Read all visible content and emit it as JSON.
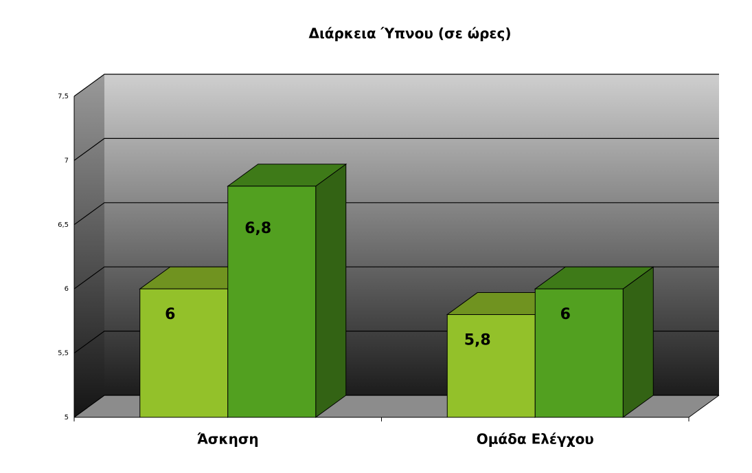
{
  "chart_data": {
    "type": "bar3d",
    "title": "Διάρκεια Ύπνου (σε ώρες)",
    "categories": [
      "Άσκηση",
      "Ομάδα Ελέγχου"
    ],
    "series": [
      {
        "color": "#93c12a",
        "values": [
          6,
          5.8
        ],
        "value_labels": [
          "6",
          "5,8"
        ]
      },
      {
        "color": "#52a020",
        "values": [
          6.8,
          6
        ],
        "value_labels": [
          "6,8",
          "6"
        ]
      }
    ],
    "ylim": [
      5,
      7.5
    ],
    "yticks": [
      5,
      {
        "value": 5.5,
        "label": "5,5"
      },
      6,
      {
        "value": 6.5,
        "label": "6,5"
      },
      7,
      {
        "value": 7.5,
        "label": "7,5"
      }
    ],
    "grid": true
  }
}
